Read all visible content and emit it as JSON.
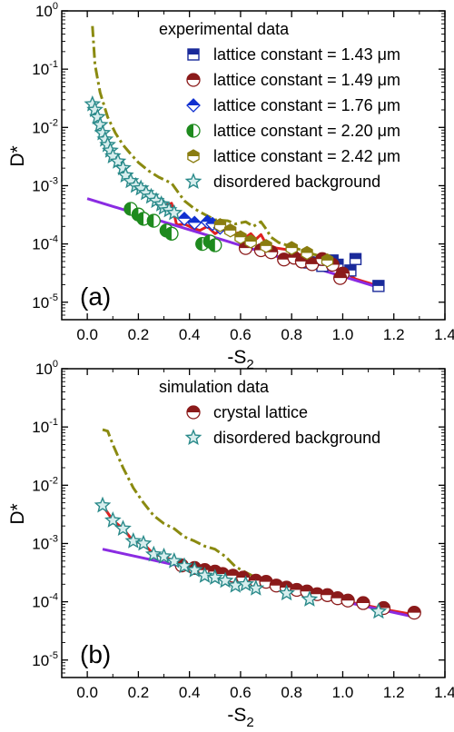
{
  "colors": {
    "exp_blue_square": "#1a2a9a",
    "exp_red_circle": "#8b1a1a",
    "exp_blue_diamond": "#1030d0",
    "exp_green_circle": "#1e8a1e",
    "exp_olive_hexagon": "#8a7d10",
    "star_teal": "#2a8a8a",
    "fit_purple": "#8a2be2",
    "red_line": "#e02020",
    "olive_dashdot": "#8a8a10"
  },
  "chart_data": [
    {
      "type": "scatter",
      "panel_label": "(a)",
      "xlabel": "-S",
      "xlabel_sub": "2",
      "ylabel": "D*",
      "xlim": [
        -0.1,
        1.4
      ],
      "ylim_log10": [
        -5.3,
        0
      ],
      "log_y": true,
      "x_ticks": [
        "0.0",
        "0.2",
        "0.4",
        "0.6",
        "0.8",
        "1.0",
        "1.2",
        "1.4"
      ],
      "y_ticks": [
        {
          "base": "10",
          "exp": "-5"
        },
        {
          "base": "10",
          "exp": "-4"
        },
        {
          "base": "10",
          "exp": "-3"
        },
        {
          "base": "10",
          "exp": "-2"
        },
        {
          "base": "10",
          "exp": "-1"
        },
        {
          "base": "10",
          "exp": "0"
        }
      ],
      "legend_title": "experimental data",
      "legend_entries": [
        "lattice constant = 1.43 μm",
        "lattice constant = 1.49 μm",
        "lattice constant = 1.76 μm",
        "lattice constant = 2.20 μm",
        "lattice constant = 2.42 μm",
        "disordered background"
      ],
      "series": [
        {
          "name": "lattice constant = 1.43 μm",
          "marker": "square",
          "color_key": "exp_blue_square",
          "points": [
            [
              0.87,
              4.8e-05
            ],
            [
              0.92,
              4.2e-05
            ],
            [
              0.96,
              5.2e-05
            ],
            [
              0.98,
              4.4e-05
            ],
            [
              1.03,
              3.5e-05
            ],
            [
              1.05,
              5.5e-05
            ],
            [
              1.14,
              1.9e-05
            ]
          ]
        },
        {
          "name": "lattice constant = 1.49 μm",
          "marker": "circle",
          "color_key": "exp_red_circle",
          "points": [
            [
              0.62,
              8.5e-05
            ],
            [
              0.68,
              7.8e-05
            ],
            [
              0.72,
              7.2e-05
            ],
            [
              0.77,
              5.4e-05
            ],
            [
              0.81,
              5.8e-05
            ],
            [
              0.84,
              5e-05
            ],
            [
              0.88,
              4.5e-05
            ],
            [
              0.92,
              5.5e-05
            ],
            [
              0.96,
              4.4e-05
            ],
            [
              1.0,
              3.1e-05
            ],
            [
              0.99,
              2.6e-05
            ]
          ]
        },
        {
          "name": "lattice constant = 1.76 μm",
          "marker": "diamond",
          "color_key": "exp_blue_diamond",
          "points": [
            [
              0.38,
              0.00027
            ],
            [
              0.42,
              0.00023
            ],
            [
              0.47,
              0.00024
            ],
            [
              0.49,
              0.00022
            ],
            [
              0.52,
              0.00019
            ]
          ]
        },
        {
          "name": "lattice constant = 2.20 μm",
          "marker": "halfcircle",
          "color_key": "exp_green_circle",
          "points": [
            [
              0.17,
              0.0004
            ],
            [
              0.2,
              0.00032
            ],
            [
              0.22,
              0.00027
            ],
            [
              0.26,
              0.00025
            ],
            [
              0.31,
              0.00017
            ],
            [
              0.33,
              0.00015
            ],
            [
              0.45,
              0.0001
            ],
            [
              0.48,
              0.00011
            ],
            [
              0.5,
              9.5e-05
            ]
          ]
        },
        {
          "name": "lattice constant = 2.42 μm",
          "marker": "hexagon",
          "color_key": "exp_olive_hexagon",
          "points": [
            [
              0.52,
              0.00021
            ],
            [
              0.56,
              0.00017
            ],
            [
              0.6,
              0.00013
            ],
            [
              0.64,
              0.00011
            ],
            [
              0.7,
              9.2e-05
            ],
            [
              0.8,
              8.5e-05
            ],
            [
              0.86,
              7e-05
            ],
            [
              0.94,
              5.2e-05
            ]
          ]
        },
        {
          "name": "disordered background",
          "marker": "star",
          "color_key": "star_teal",
          "points": [
            [
              0.02,
              0.025
            ],
            [
              0.03,
              0.02
            ],
            [
              0.04,
              0.015
            ],
            [
              0.05,
              0.011
            ],
            [
              0.06,
              0.008
            ],
            [
              0.07,
              0.0062
            ],
            [
              0.08,
              0.005
            ],
            [
              0.09,
              0.004
            ],
            [
              0.1,
              0.0032
            ],
            [
              0.12,
              0.0026
            ],
            [
              0.14,
              0.002
            ],
            [
              0.15,
              0.0015
            ],
            [
              0.17,
              0.0012
            ],
            [
              0.19,
              0.001
            ],
            [
              0.21,
              0.0009
            ],
            [
              0.23,
              0.00075
            ],
            [
              0.25,
              0.00065
            ],
            [
              0.27,
              0.00055
            ],
            [
              0.29,
              0.00048
            ],
            [
              0.3,
              0.00042
            ],
            [
              0.32,
              0.00038
            ],
            [
              0.34,
              0.00034
            ]
          ]
        }
      ],
      "lines": [
        {
          "style": "dashdot",
          "color_key": "olive_dashdot",
          "points": [
            [
              0.02,
              0.55
            ],
            [
              0.03,
              0.12
            ],
            [
              0.05,
              0.04
            ],
            [
              0.08,
              0.015
            ],
            [
              0.11,
              0.008
            ],
            [
              0.14,
              0.005
            ],
            [
              0.17,
              0.0035
            ],
            [
              0.2,
              0.0025
            ],
            [
              0.24,
              0.0018
            ],
            [
              0.28,
              0.0014
            ],
            [
              0.33,
              0.0011
            ],
            [
              0.38,
              0.00055
            ],
            [
              0.42,
              0.0004
            ],
            [
              0.46,
              0.00032
            ],
            [
              0.5,
              0.00026
            ],
            [
              0.55,
              0.00025
            ],
            [
              0.58,
              0.00022
            ],
            [
              0.62,
              0.00024
            ],
            [
              0.65,
              0.0002
            ],
            [
              0.68,
              0.00024
            ],
            [
              0.7,
              0.00018
            ],
            [
              0.72,
              0.00013
            ],
            [
              0.75,
              0.000105
            ],
            [
              0.8,
              9e-05
            ],
            [
              0.86,
              7.2e-05
            ],
            [
              0.92,
              6e-05
            ],
            [
              0.95,
              5.2e-05
            ]
          ]
        },
        {
          "style": "solid",
          "color_key": "red_line",
          "points": [
            [
              0.3,
              0.00044
            ],
            [
              0.33,
              0.0005
            ],
            [
              0.35,
              0.00021
            ],
            [
              0.38,
              0.00022
            ],
            [
              0.41,
              0.00019
            ],
            [
              0.44,
              0.00017
            ],
            [
              0.47,
              0.0002
            ],
            [
              0.5,
              0.00015
            ],
            [
              0.53,
              0.00018
            ],
            [
              0.56,
              0.00014
            ],
            [
              0.59,
              0.000155
            ],
            [
              0.62,
              0.00013
            ],
            [
              0.64,
              0.00015
            ],
            [
              0.66,
              0.00012
            ],
            [
              0.68,
              0.000145
            ],
            [
              0.7,
              0.0001
            ],
            [
              0.74,
              8.5e-05
            ],
            [
              0.78,
              8e-05
            ],
            [
              0.82,
              6.6e-05
            ],
            [
              0.86,
              6.5e-05
            ],
            [
              0.9,
              5.5e-05
            ],
            [
              0.94,
              5e-05
            ],
            [
              1.0,
              3.5e-05
            ],
            [
              1.05,
              2.5e-05
            ],
            [
              1.14,
              1.9e-05
            ]
          ]
        },
        {
          "style": "solid",
          "color_key": "fit_purple",
          "points": [
            [
              0.0,
              0.0006
            ],
            [
              1.14,
              1.8e-05
            ]
          ]
        }
      ]
    },
    {
      "type": "scatter",
      "panel_label": "(b)",
      "xlabel": "-S",
      "xlabel_sub": "2",
      "ylabel": "D*",
      "xlim": [
        -0.1,
        1.4
      ],
      "ylim_log10": [
        -5.3,
        0
      ],
      "log_y": true,
      "x_ticks": [
        "0.0",
        "0.2",
        "0.4",
        "0.6",
        "0.8",
        "1.0",
        "1.2",
        "1.4"
      ],
      "y_ticks": [
        {
          "base": "10",
          "exp": "-5"
        },
        {
          "base": "10",
          "exp": "-4"
        },
        {
          "base": "10",
          "exp": "-3"
        },
        {
          "base": "10",
          "exp": "-2"
        },
        {
          "base": "10",
          "exp": "-1"
        },
        {
          "base": "10",
          "exp": "0"
        }
      ],
      "legend_title": "simulation data",
      "legend_entries": [
        "crystal lattice",
        "disordered background"
      ],
      "series": [
        {
          "name": "crystal lattice",
          "marker": "circle",
          "color_key": "exp_red_circle",
          "points": [
            [
              0.37,
              0.00042
            ],
            [
              0.42,
              0.00038
            ],
            [
              0.46,
              0.00035
            ],
            [
              0.5,
              0.00033
            ],
            [
              0.53,
              0.0003
            ],
            [
              0.57,
              0.00028
            ],
            [
              0.61,
              0.00026
            ],
            [
              0.66,
              0.00023
            ],
            [
              0.7,
              0.00022
            ],
            [
              0.74,
              0.00019
            ],
            [
              0.78,
              0.000175
            ],
            [
              0.82,
              0.00016
            ],
            [
              0.86,
              0.00015
            ],
            [
              0.9,
              0.000135
            ],
            [
              0.94,
              0.00013
            ],
            [
              0.98,
              0.000115
            ],
            [
              1.02,
              0.000105
            ],
            [
              1.08,
              9.5e-05
            ],
            [
              1.16,
              7.8e-05
            ],
            [
              1.28,
              6.5e-05
            ]
          ]
        },
        {
          "name": "disordered background",
          "marker": "star",
          "color_key": "star_teal",
          "points": [
            [
              0.06,
              0.0045
            ],
            [
              0.1,
              0.0025
            ],
            [
              0.14,
              0.0018
            ],
            [
              0.18,
              0.0011
            ],
            [
              0.22,
              0.001
            ],
            [
              0.26,
              0.00065
            ],
            [
              0.3,
              0.0006
            ],
            [
              0.34,
              0.0005
            ],
            [
              0.38,
              0.00041
            ],
            [
              0.42,
              0.00035
            ],
            [
              0.46,
              0.00028
            ],
            [
              0.5,
              0.00026
            ],
            [
              0.54,
              0.00023
            ],
            [
              0.58,
              0.00019
            ],
            [
              0.62,
              0.0002
            ],
            [
              0.66,
              0.00017
            ],
            [
              0.78,
              0.00014
            ],
            [
              0.87,
              0.00011
            ],
            [
              1.14,
              6.8e-05
            ]
          ]
        }
      ],
      "lines": [
        {
          "style": "dashdot",
          "color_key": "olive_dashdot",
          "points": [
            [
              0.06,
              0.09
            ],
            [
              0.08,
              0.085
            ],
            [
              0.1,
              0.05
            ],
            [
              0.14,
              0.02
            ],
            [
              0.18,
              0.009
            ],
            [
              0.22,
              0.005
            ],
            [
              0.26,
              0.003
            ],
            [
              0.3,
              0.0022
            ],
            [
              0.34,
              0.0018
            ],
            [
              0.38,
              0.0013
            ],
            [
              0.42,
              0.0011
            ],
            [
              0.46,
              0.0009
            ],
            [
              0.5,
              0.0008
            ],
            [
              0.54,
              0.0006
            ],
            [
              0.58,
              0.0004
            ],
            [
              0.62,
              0.00032
            ],
            [
              0.66,
              0.00026
            ],
            [
              0.7,
              0.00022
            ],
            [
              0.78,
              0.00018
            ],
            [
              0.86,
              0.00015
            ]
          ]
        },
        {
          "style": "solid",
          "color_key": "red_line",
          "points": [
            [
              0.06,
              0.0045
            ],
            [
              0.1,
              0.0025
            ],
            [
              0.14,
              0.0018
            ],
            [
              0.18,
              0.0011
            ],
            [
              0.22,
              0.001
            ],
            [
              0.26,
              0.00065
            ],
            [
              0.3,
              0.0006
            ],
            [
              0.34,
              0.0005
            ],
            [
              0.38,
              0.00042
            ],
            [
              0.42,
              0.00036
            ],
            [
              0.46,
              0.00032
            ],
            [
              0.5,
              0.00028
            ],
            [
              0.54,
              0.00026
            ],
            [
              0.58,
              0.00024
            ],
            [
              0.62,
              0.00022
            ],
            [
              0.66,
              0.0002
            ],
            [
              0.7,
              0.00019
            ],
            [
              0.78,
              0.00016
            ],
            [
              0.86,
              0.00014
            ],
            [
              0.94,
              0.00012
            ],
            [
              1.02,
              0.0001
            ],
            [
              1.1,
              8.5e-05
            ],
            [
              1.18,
              7.2e-05
            ],
            [
              1.28,
              6e-05
            ]
          ]
        },
        {
          "style": "solid",
          "color_key": "fit_purple",
          "points": [
            [
              0.06,
              0.0008
            ],
            [
              1.28,
              5.5e-05
            ]
          ]
        }
      ]
    }
  ]
}
